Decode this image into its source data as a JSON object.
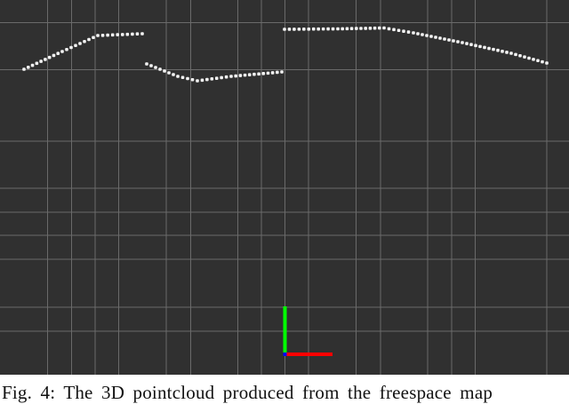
{
  "figure": {
    "caption": "Fig. 4: The 3D pointcloud produced from the freespace map",
    "background_color": "#303030",
    "grid_color": "#6a6a6a",
    "point_color": "#f2f2f2",
    "axes_colors": {
      "x": "#ff0000",
      "y": "#00ff00",
      "z": "#0000ff"
    }
  }
}
